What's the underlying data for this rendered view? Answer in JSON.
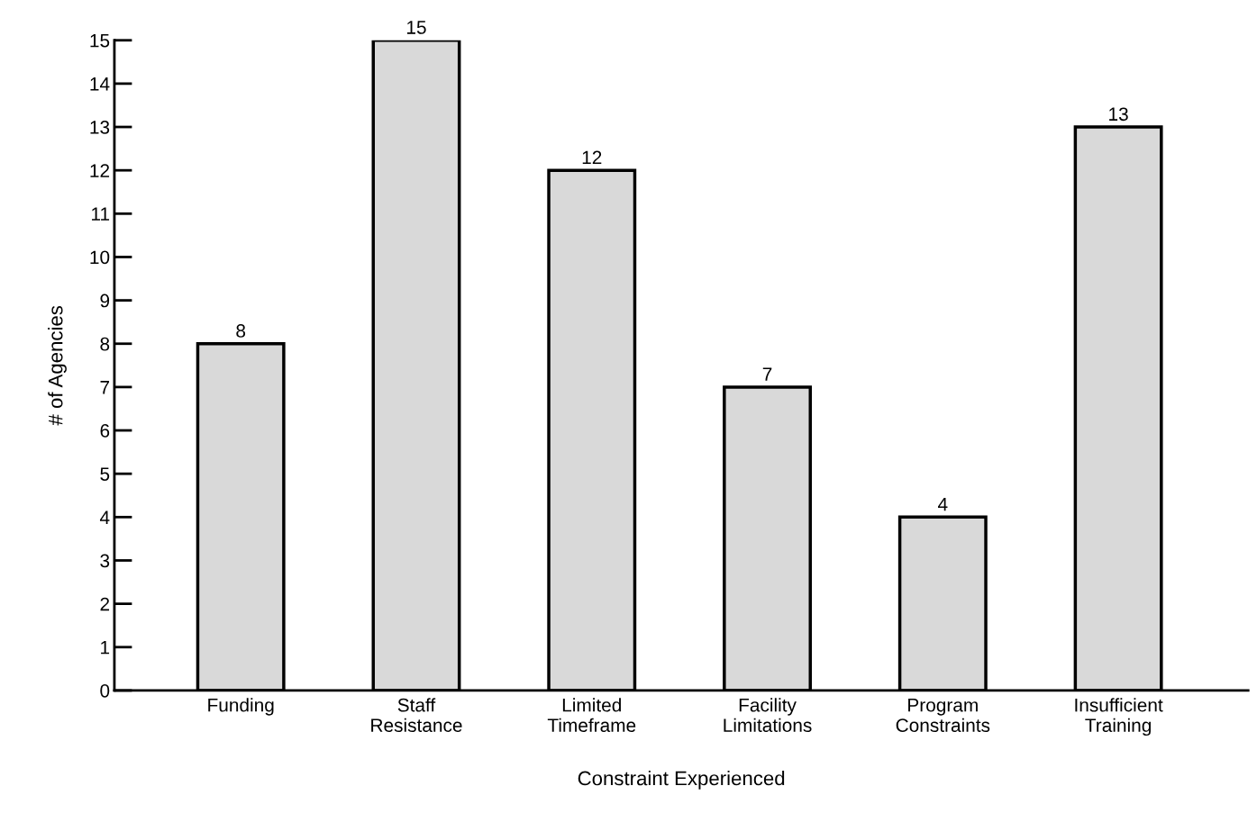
{
  "chart_data": {
    "type": "bar",
    "xlabel": "Constraint Experienced",
    "ylabel": "# of Agencies",
    "categories": [
      "Funding",
      "Staff\nResistance",
      "Limited\nTimeframe",
      "Facility\nLimitations",
      "Program\nConstraints",
      "Insufficient\nTraining"
    ],
    "values": [
      8,
      15,
      12,
      7,
      4,
      13
    ],
    "color": "#d9d9d9",
    "ylim": [
      0,
      15
    ],
    "yticks": [
      0,
      1,
      2,
      3,
      4,
      5,
      6,
      7,
      8,
      9,
      10,
      11,
      12,
      13,
      14,
      15
    ],
    "data_labels": true,
    "grid": false
  }
}
